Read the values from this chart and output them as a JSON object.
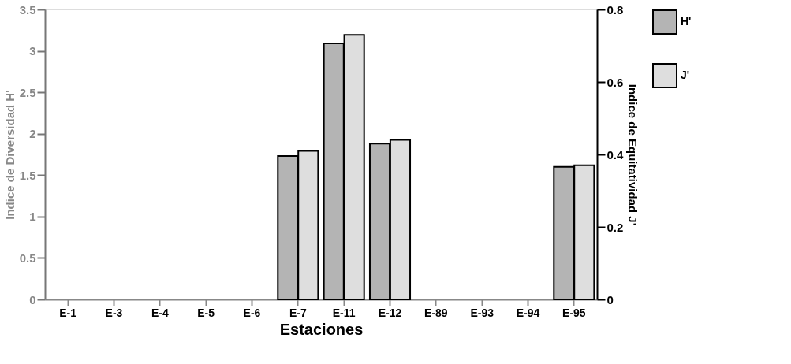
{
  "chart_data": {
    "type": "bar",
    "xlabel": "Estaciones",
    "ylabel": "Indice de Diversidad H'",
    "y2label": "Indice de Equitatividad J'",
    "categories": [
      "E-1",
      "E-3",
      "E-4",
      "E-5",
      "E-6",
      "E-7",
      "E-11",
      "E-12",
      "E-89",
      "E-93",
      "E-94",
      "E-95"
    ],
    "series": [
      {
        "name": "H'",
        "color": "#b4b4b4",
        "axis": "y",
        "values": [
          null,
          null,
          null,
          null,
          null,
          1.73,
          3.09,
          1.88,
          null,
          null,
          null,
          1.6
        ]
      },
      {
        "name": "J'",
        "color": "#dedede",
        "axis": "y2",
        "values": [
          null,
          null,
          null,
          null,
          null,
          0.41,
          0.73,
          0.44,
          null,
          null,
          null,
          0.37
        ]
      }
    ],
    "ylim": [
      0,
      3.5
    ],
    "yticks": [
      0,
      0.5,
      1,
      1.5,
      2,
      2.5,
      3,
      3.5
    ],
    "y2lim": [
      0,
      0.8
    ],
    "y2ticks": [
      0,
      0.2,
      0.4,
      0.6,
      0.8
    ],
    "legend": "right",
    "grid": false
  }
}
